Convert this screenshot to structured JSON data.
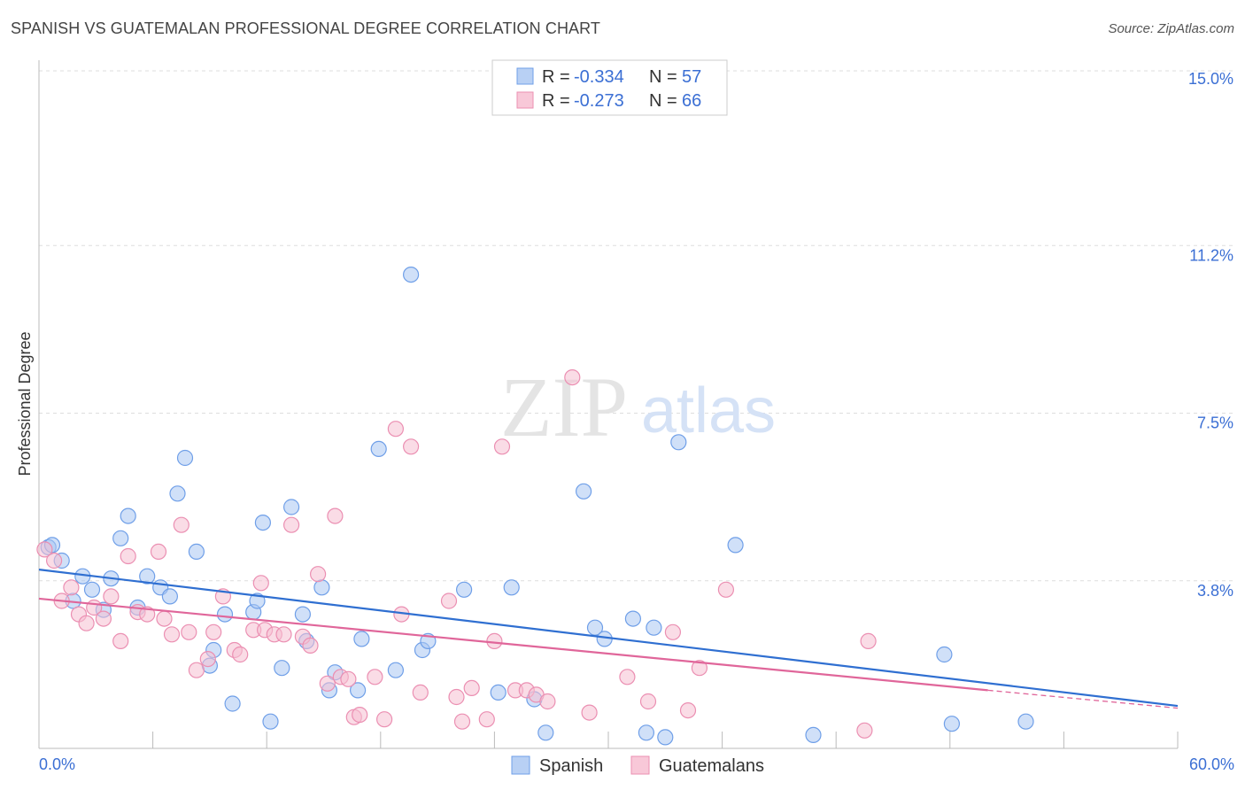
{
  "title": "SPANISH VS GUATEMALAN PROFESSIONAL DEGREE CORRELATION CHART",
  "source": "Source: ZipAtlas.com",
  "watermark": {
    "zip": "ZIP",
    "atlas": "atlas"
  },
  "chart_data": {
    "type": "scatter",
    "title": "SPANISH VS GUATEMALAN PROFESSIONAL DEGREE CORRELATION CHART",
    "xlabel": "",
    "ylabel": "Professional Degree",
    "xlim": [
      0,
      60
    ],
    "ylim": [
      0,
      15
    ],
    "x_tick_labels": {
      "left": "0.0%",
      "right": "60.0%"
    },
    "y_ticks": [
      {
        "value": 15.0,
        "label": "15.0%"
      },
      {
        "value": 11.25,
        "label": "11.2%"
      },
      {
        "value": 7.5,
        "label": "7.5%"
      },
      {
        "value": 3.75,
        "label": "3.8%"
      }
    ],
    "legend_stats": [
      {
        "r_label": "R = ",
        "r": "-0.334",
        "n_label": "N = ",
        "n": "57"
      },
      {
        "r_label": "R = ",
        "r": "-0.273",
        "n_label": "N = ",
        "n": "66"
      }
    ],
    "series": [
      {
        "name": "Spanish",
        "color": "#6f9fe8",
        "fill": "#a9c7f2",
        "line_color": "#2f6fd1",
        "trend": {
          "x": [
            0,
            60
          ],
          "y": [
            4.0,
            0.95
          ]
        },
        "points": [
          [
            0.5,
            4.5
          ],
          [
            0.7,
            4.55
          ],
          [
            1.2,
            4.2
          ],
          [
            1.8,
            3.3
          ],
          [
            2.3,
            3.85
          ],
          [
            2.8,
            3.55
          ],
          [
            3.4,
            3.1
          ],
          [
            3.8,
            3.8
          ],
          [
            4.3,
            4.7
          ],
          [
            4.7,
            5.2
          ],
          [
            5.2,
            3.15
          ],
          [
            5.7,
            3.85
          ],
          [
            6.4,
            3.6
          ],
          [
            6.9,
            3.4
          ],
          [
            7.3,
            5.7
          ],
          [
            7.7,
            6.5
          ],
          [
            8.3,
            4.4
          ],
          [
            9.0,
            1.85
          ],
          [
            9.2,
            2.2
          ],
          [
            9.8,
            3.0
          ],
          [
            10.2,
            1.0
          ],
          [
            11.3,
            3.05
          ],
          [
            11.5,
            3.3
          ],
          [
            11.8,
            5.05
          ],
          [
            12.2,
            0.6
          ],
          [
            12.8,
            1.8
          ],
          [
            13.3,
            5.4
          ],
          [
            13.9,
            3.0
          ],
          [
            14.1,
            2.4
          ],
          [
            14.9,
            3.6
          ],
          [
            15.3,
            1.3
          ],
          [
            15.6,
            1.7
          ],
          [
            16.8,
            1.3
          ],
          [
            17.0,
            2.45
          ],
          [
            17.9,
            6.7
          ],
          [
            18.8,
            1.75
          ],
          [
            19.6,
            10.6
          ],
          [
            20.2,
            2.2
          ],
          [
            20.5,
            2.4
          ],
          [
            22.4,
            3.55
          ],
          [
            24.2,
            1.25
          ],
          [
            24.9,
            3.6
          ],
          [
            26.1,
            1.1
          ],
          [
            26.7,
            0.35
          ],
          [
            28.7,
            5.75
          ],
          [
            29.3,
            2.7
          ],
          [
            29.8,
            2.45
          ],
          [
            31.3,
            2.9
          ],
          [
            32.0,
            0.35
          ],
          [
            32.4,
            2.7
          ],
          [
            33.0,
            0.25
          ],
          [
            33.7,
            6.85
          ],
          [
            36.7,
            4.55
          ],
          [
            40.8,
            0.3
          ],
          [
            47.7,
            2.1
          ],
          [
            48.1,
            0.55
          ],
          [
            52.0,
            0.6
          ]
        ]
      },
      {
        "name": "Guatemalans",
        "color": "#eb8fb2",
        "fill": "#f6bfd2",
        "line_color": "#e0669a",
        "trend": {
          "x": [
            0,
            50
          ],
          "y": [
            3.35,
            1.3
          ]
        },
        "trend_dashed": {
          "x": [
            50,
            60
          ],
          "y": [
            1.3,
            0.9
          ]
        },
        "points": [
          [
            0.3,
            4.45
          ],
          [
            0.8,
            4.2
          ],
          [
            1.2,
            3.3
          ],
          [
            1.7,
            3.6
          ],
          [
            2.1,
            3.0
          ],
          [
            2.5,
            2.8
          ],
          [
            2.9,
            3.15
          ],
          [
            3.4,
            2.9
          ],
          [
            3.8,
            3.4
          ],
          [
            4.3,
            2.4
          ],
          [
            4.7,
            4.3
          ],
          [
            5.2,
            3.05
          ],
          [
            5.7,
            3.0
          ],
          [
            6.3,
            4.4
          ],
          [
            6.6,
            2.9
          ],
          [
            7.0,
            2.55
          ],
          [
            7.5,
            5.0
          ],
          [
            7.9,
            2.6
          ],
          [
            8.3,
            1.75
          ],
          [
            8.9,
            2.0
          ],
          [
            9.2,
            2.6
          ],
          [
            9.7,
            3.4
          ],
          [
            10.3,
            2.2
          ],
          [
            10.6,
            2.1
          ],
          [
            11.3,
            2.65
          ],
          [
            11.7,
            3.7
          ],
          [
            11.9,
            2.65
          ],
          [
            12.4,
            2.55
          ],
          [
            12.9,
            2.55
          ],
          [
            13.3,
            5.0
          ],
          [
            13.9,
            2.5
          ],
          [
            14.3,
            2.3
          ],
          [
            14.7,
            3.9
          ],
          [
            15.2,
            1.45
          ],
          [
            15.6,
            5.2
          ],
          [
            15.9,
            1.6
          ],
          [
            16.3,
            1.55
          ],
          [
            16.6,
            0.7
          ],
          [
            16.9,
            0.75
          ],
          [
            17.7,
            1.6
          ],
          [
            18.2,
            0.65
          ],
          [
            18.8,
            7.15
          ],
          [
            19.1,
            3.0
          ],
          [
            19.6,
            6.75
          ],
          [
            20.1,
            1.25
          ],
          [
            21.6,
            3.3
          ],
          [
            22.0,
            1.15
          ],
          [
            22.3,
            0.6
          ],
          [
            22.8,
            1.35
          ],
          [
            23.6,
            0.65
          ],
          [
            24.0,
            2.4
          ],
          [
            24.4,
            6.75
          ],
          [
            25.1,
            1.3
          ],
          [
            25.7,
            1.3
          ],
          [
            26.2,
            1.2
          ],
          [
            26.8,
            1.05
          ],
          [
            28.1,
            8.3
          ],
          [
            29.0,
            0.8
          ],
          [
            31.0,
            1.6
          ],
          [
            32.1,
            1.05
          ],
          [
            33.4,
            2.6
          ],
          [
            34.2,
            0.85
          ],
          [
            34.8,
            1.8
          ],
          [
            36.2,
            3.55
          ],
          [
            43.7,
            2.4
          ],
          [
            43.5,
            0.4
          ]
        ]
      }
    ]
  }
}
